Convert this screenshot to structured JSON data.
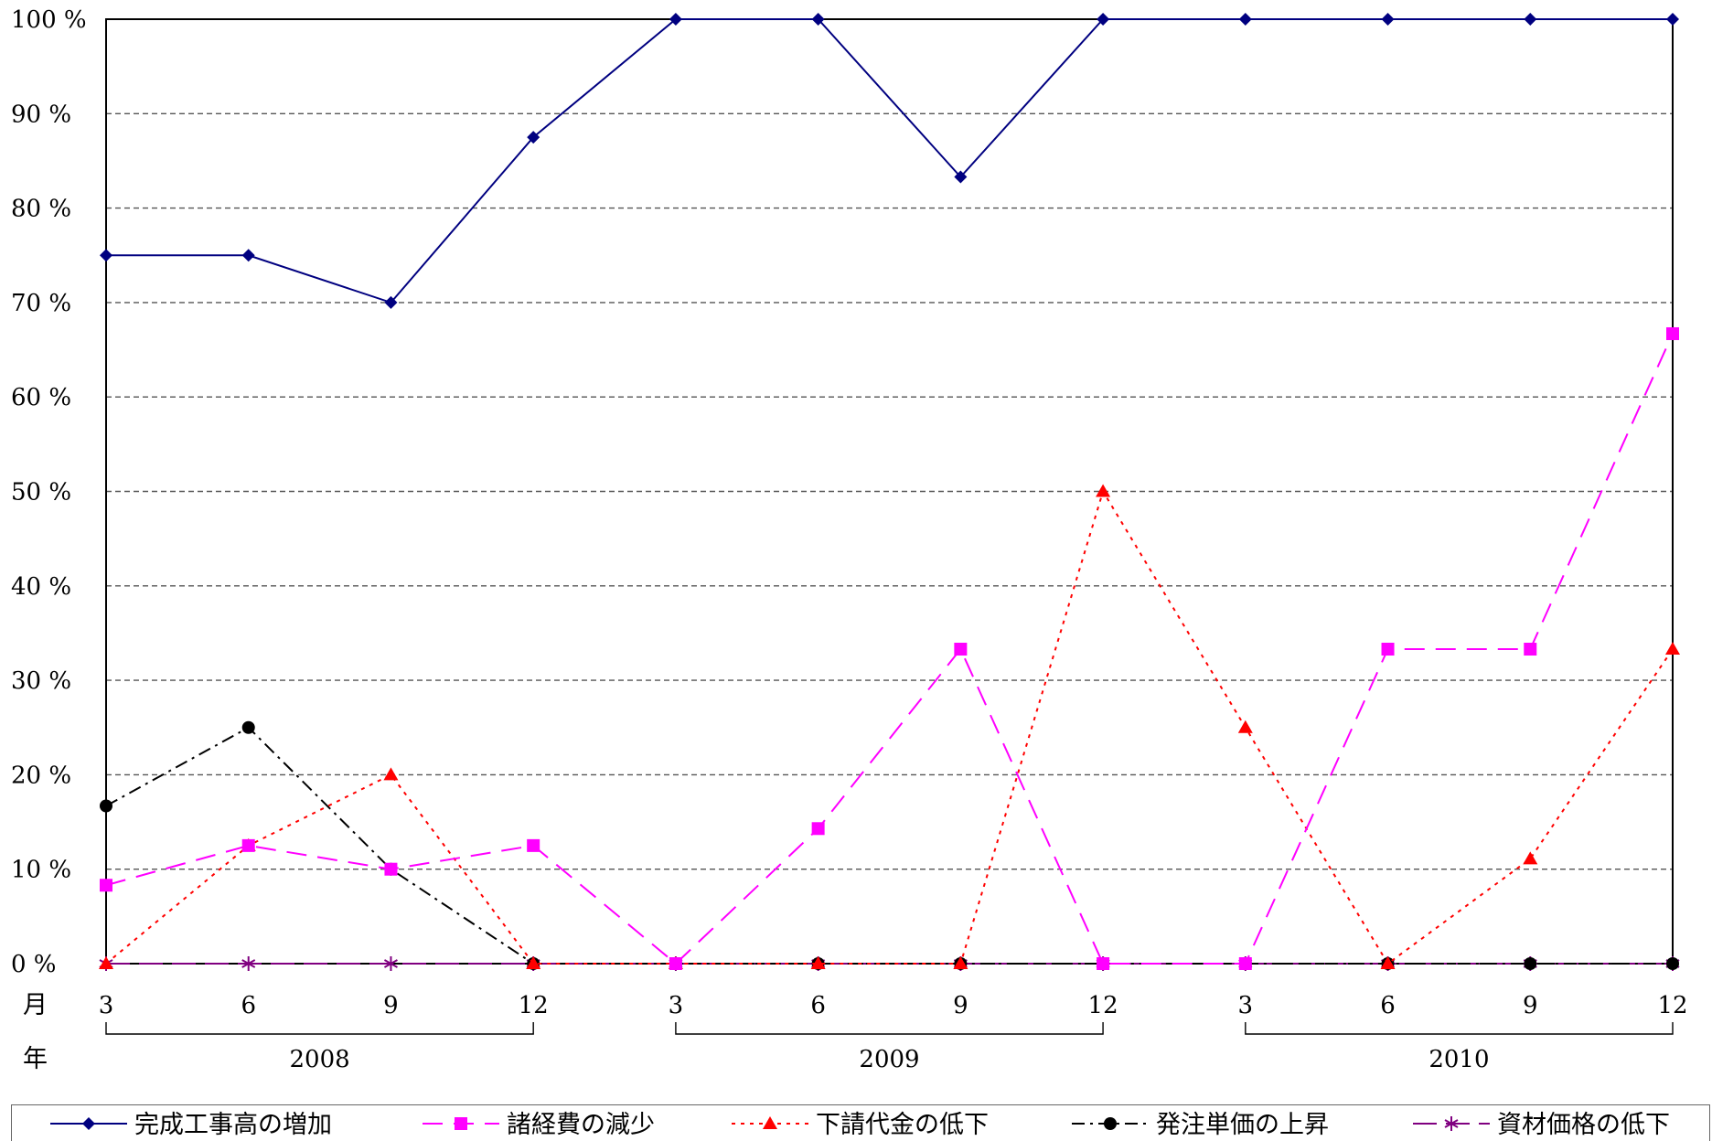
{
  "chart_data": {
    "type": "line",
    "ylim": [
      0,
      100
    ],
    "y_ticks": [
      "0 %",
      "10 %",
      "20 %",
      "30 %",
      "40 %",
      "50 %",
      "60 %",
      "70 %",
      "80 %",
      "90 %",
      "100 %"
    ],
    "x_tick_labels": [
      "3",
      "6",
      "9",
      "12",
      "3",
      "6",
      "9",
      "12",
      "3",
      "6",
      "9",
      "12"
    ],
    "month_label": "月",
    "year_label": "年",
    "year_groups": [
      {
        "label": "2008",
        "start": 0,
        "end": 3
      },
      {
        "label": "2009",
        "start": 4,
        "end": 7
      },
      {
        "label": "2010",
        "start": 8,
        "end": 11
      }
    ],
    "grid": true,
    "legend_position": "bottom",
    "series": [
      {
        "name": "完成工事高の増加",
        "color": "#000080",
        "marker": "diamond",
        "dash": "solid",
        "values": [
          75,
          75,
          70,
          87.5,
          100,
          100,
          83.3,
          100,
          100,
          100,
          100,
          100
        ]
      },
      {
        "name": "諸経費の減少",
        "color": "#ff00ff",
        "marker": "square",
        "dash": "dash",
        "values": [
          8.3,
          12.5,
          10,
          12.5,
          0,
          14.3,
          33.3,
          0,
          0,
          33.3,
          33.3,
          66.7
        ]
      },
      {
        "name": "下請代金の低下",
        "color": "#ff0000",
        "marker": "triangle",
        "dash": "dot",
        "values": [
          0,
          12.5,
          20,
          0,
          0,
          0,
          0,
          50,
          25,
          0,
          11.1,
          33.3
        ]
      },
      {
        "name": "発注単価の上昇",
        "color": "#000000",
        "marker": "circle",
        "dash": "dashdot",
        "values": [
          16.7,
          25,
          10,
          0,
          0,
          0,
          0,
          0,
          0,
          0,
          0,
          0
        ]
      },
      {
        "name": "資材価格の低下",
        "color": "#800080",
        "marker": "asterisk",
        "dash": "longdash",
        "values": [
          0,
          0,
          0,
          0,
          0,
          0,
          0,
          0,
          0,
          0,
          0,
          0
        ]
      }
    ]
  }
}
